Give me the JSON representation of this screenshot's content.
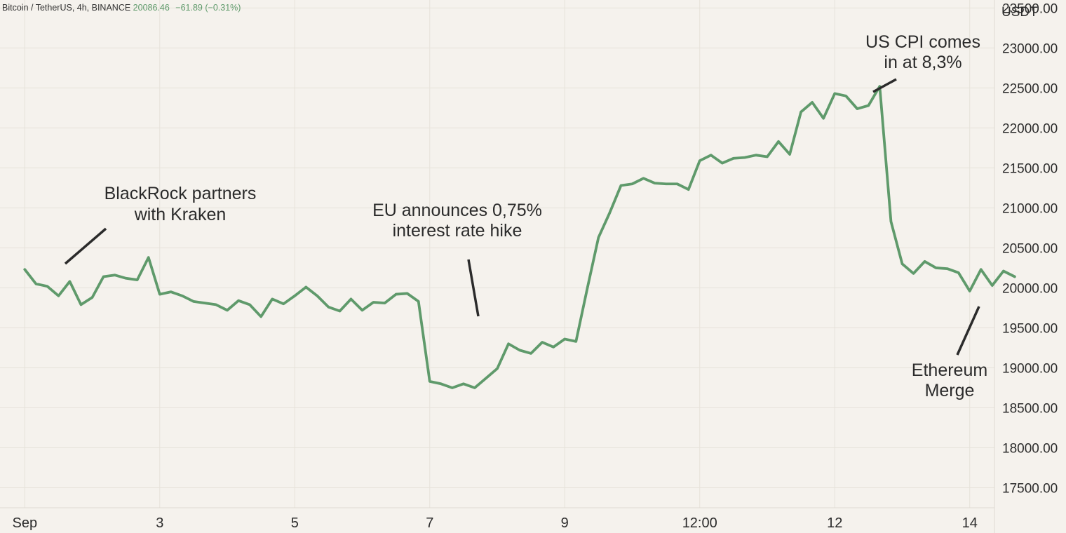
{
  "header": {
    "symbol": "Bitcoin / TetherUS, 4h, BINANCE",
    "price": "20086.46",
    "change": "−61.89 (−0.31%)"
  },
  "colors": {
    "background": "#f5f2ed",
    "series": "#5f9a6b",
    "header_value": "#5f9a6b"
  },
  "chart_data": {
    "type": "line",
    "unit_label": "USDT",
    "grid": true,
    "ylim": [
      17250,
      23600
    ],
    "yticks": [
      17500,
      18000,
      18500,
      19000,
      19500,
      20000,
      20500,
      21000,
      21500,
      22000,
      22500,
      23000,
      23500
    ],
    "ytick_labels": [
      "17500.00",
      "18000.00",
      "18500.00",
      "19000.00",
      "19500.00",
      "20000.00",
      "20500.00",
      "21000.00",
      "21500.00",
      "22000.00",
      "22500.00",
      "23000.00",
      "23500.00"
    ],
    "xlim": [
      -2.2,
      86.2
    ],
    "xticks": [
      0,
      12,
      24,
      36,
      48,
      60,
      72,
      84
    ],
    "xtick_labels": [
      "Sep",
      "3",
      "5",
      "7",
      "9",
      "12:00",
      "12",
      "14"
    ],
    "series": [
      {
        "values": [
          20230,
          20050,
          20020,
          19900,
          20080,
          19790,
          19880,
          20140,
          20160,
          20120,
          20100,
          20380,
          19920,
          19950,
          19900,
          19830,
          19810,
          19790,
          19720,
          19840,
          19790,
          19640,
          19860,
          19800,
          19900,
          20010,
          19900,
          19760,
          19710,
          19860,
          19720,
          19820,
          19810,
          19920,
          19930,
          19830,
          18830,
          18800,
          18750,
          18800,
          18750,
          18870,
          18990,
          19300,
          19220,
          19180,
          19320,
          19260,
          19360,
          19330,
          19990,
          20630,
          20940,
          21280,
          21300,
          21370,
          21310,
          21300,
          21300,
          21230,
          21590,
          21660,
          21560,
          21620,
          21630,
          21660,
          21640,
          21830,
          21670,
          22200,
          22320,
          22120,
          22430,
          22400,
          22240,
          22280,
          22520,
          20830,
          20300,
          20180,
          20330,
          20250,
          20240,
          20190,
          19960,
          20230,
          20030,
          20210,
          20140
        ]
      }
    ],
    "annotations": [
      {
        "lines": [
          "BlackRock partners",
          "with Kraken"
        ]
      },
      {
        "lines": [
          "EU announces 0,75%",
          "interest rate hike"
        ]
      },
      {
        "lines": [
          "US CPI comes",
          "in at 8,3%"
        ]
      },
      {
        "lines": [
          "Ethereum",
          "Merge"
        ]
      }
    ]
  }
}
